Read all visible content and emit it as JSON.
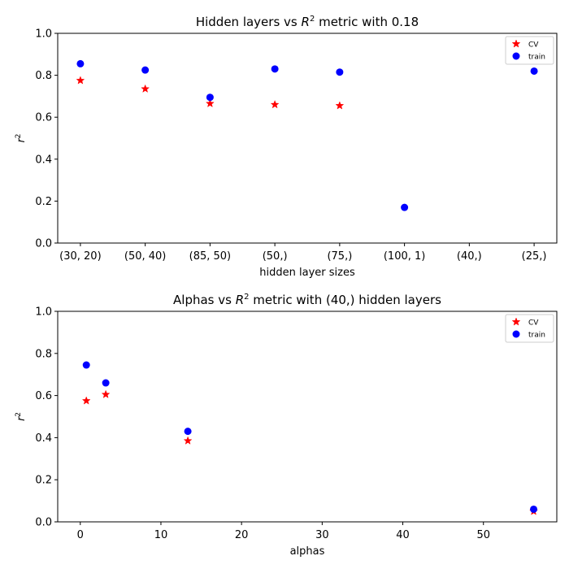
{
  "chart_data": [
    {
      "type": "scatter",
      "title_prefix": "Hidden layers vs ",
      "title_math_base": "R",
      "title_math_sup": "2",
      "title_suffix": " metric with 0.18",
      "xlabel": "hidden layer sizes",
      "ylabel_base": "r",
      "ylabel_sup": "2",
      "categories": [
        "(30, 20)",
        "(50, 40)",
        "(85, 50)",
        "(50,)",
        "(75,)",
        "(100, 1)",
        "(40,)",
        "(25,)"
      ],
      "ylim": [
        0,
        1
      ],
      "yticks": [
        "0.0",
        "0.2",
        "0.4",
        "0.6",
        "0.8",
        "1.0"
      ],
      "legend_position": "top-right",
      "series": [
        {
          "name": "CV",
          "marker": "star",
          "color": "#ff0000",
          "values": [
            0.775,
            0.735,
            0.665,
            0.66,
            0.655,
            null,
            null,
            null
          ]
        },
        {
          "name": "train",
          "marker": "circle",
          "color": "#0000ff",
          "values": [
            0.855,
            0.825,
            0.695,
            0.83,
            0.815,
            0.17,
            null,
            0.82
          ]
        }
      ]
    },
    {
      "type": "scatter",
      "title_prefix": "Alphas vs ",
      "title_math_base": "R",
      "title_math_sup": "2",
      "title_suffix": " metric with (40,) hidden layers",
      "xlabel": "alphas",
      "ylabel_base": "r",
      "ylabel_sup": "2",
      "xlim": [
        -2.8,
        59.1
      ],
      "xticks": [
        "0",
        "10",
        "20",
        "30",
        "40",
        "50"
      ],
      "ylim": [
        0,
        1
      ],
      "yticks": [
        "0.0",
        "0.2",
        "0.4",
        "0.6",
        "0.8",
        "1.0"
      ],
      "legend_position": "top-right",
      "series": [
        {
          "name": "CV",
          "marker": "star",
          "color": "#ff0000",
          "x": [
            0.75,
            3.16,
            13.34,
            56.23
          ],
          "y": [
            0.575,
            0.605,
            0.385,
            0.05
          ]
        },
        {
          "name": "train",
          "marker": "circle",
          "color": "#0000ff",
          "x": [
            0.75,
            3.16,
            13.34,
            56.23
          ],
          "y": [
            0.745,
            0.66,
            0.43,
            0.06
          ]
        }
      ]
    }
  ]
}
